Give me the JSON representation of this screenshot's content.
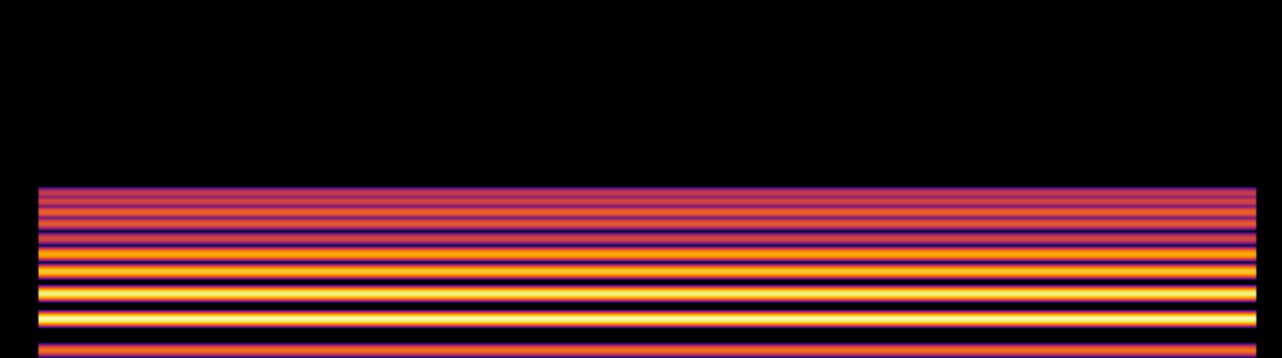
{
  "chart_data": {
    "type": "spectrogram",
    "xlim": [
      0,
      100
    ],
    "ylim": [
      0,
      100
    ],
    "value_range": [
      -80,
      0
    ],
    "background_level": -80,
    "onset": 3,
    "offset": 98,
    "harmonics": {
      "frequency": [
        2,
        10.8,
        17.9,
        24.1,
        29.0,
        33.3,
        37.5,
        40.7,
        43.7,
        46.0
      ],
      "level": [
        -25,
        0,
        -3,
        -10,
        -15,
        -35,
        -30,
        -28,
        -35,
        -38
      ]
    },
    "tick_labels": false
  }
}
